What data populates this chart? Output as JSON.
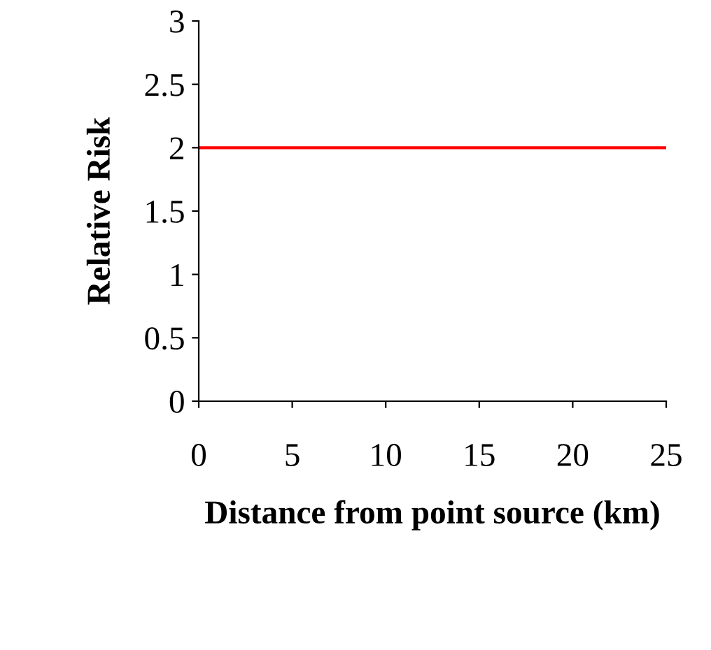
{
  "chart_data": {
    "type": "line",
    "xlabel": "Distance from point source (km)",
    "ylabel": "Relative Risk",
    "x": [
      0,
      25
    ],
    "series": [
      {
        "color": "#ff0000",
        "values": [
          2,
          2
        ]
      }
    ],
    "xlim": [
      0,
      25
    ],
    "xticks": [
      0,
      5,
      10,
      15,
      20,
      25
    ],
    "ylim": [
      0,
      3
    ],
    "yticks": [
      0,
      0.5,
      1,
      1.5,
      2,
      2.5,
      3
    ],
    "grid": false,
    "legend": false,
    "marker": "none",
    "line_style": "solid"
  }
}
